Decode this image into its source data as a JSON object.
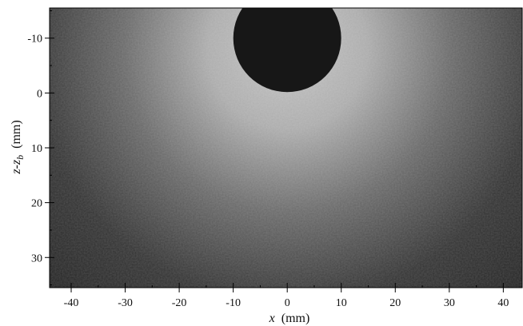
{
  "chart_data": {
    "type": "heatmap",
    "x_range": [
      -44,
      43.5
    ],
    "y_range": [
      -15.5,
      35.5
    ],
    "y_inverted": true,
    "x_ticks": [
      -40,
      -30,
      -20,
      -10,
      0,
      10,
      20,
      30,
      40
    ],
    "x_tick_labels": [
      "-40",
      "-30",
      "-20",
      "-10",
      "0",
      "10",
      "20",
      "30",
      "40"
    ],
    "y_ticks": [
      -10,
      0,
      10,
      20,
      30
    ],
    "y_tick_labels": [
      "-10",
      "0",
      "10",
      "20",
      "30"
    ],
    "xlabel": {
      "var": "x",
      "unit": "(mm)"
    },
    "ylabel": {
      "var1": "z",
      "sep": "-",
      "var2": "z",
      "sub": "b",
      "unit": "(mm)"
    },
    "bubble": {
      "center_x": 0,
      "center_z": -10,
      "radius_mm": 10
    },
    "intensity_field": {
      "description_note": "",
      "background_level": 0.12,
      "glow_center_x": 0,
      "glow_center_z": -8,
      "glow_peak": 0.78,
      "glow_decay_mm": 16
    },
    "colors": {
      "background": "#1f1f1f",
      "glow": "#f2f2f2",
      "bubble": "#171717",
      "axes": "#000000"
    }
  }
}
